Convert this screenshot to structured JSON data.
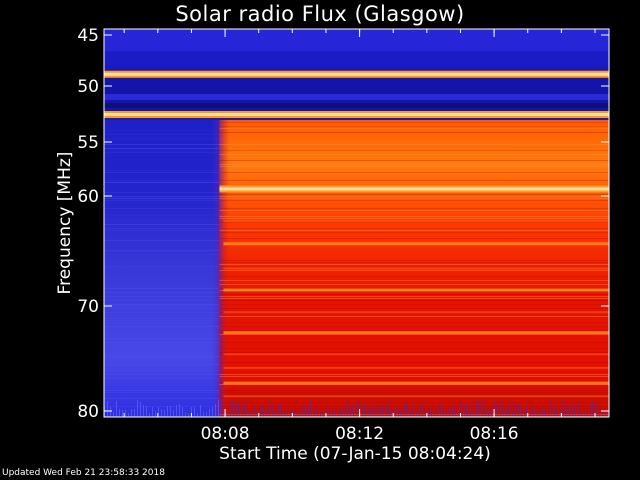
{
  "chart_data": {
    "type": "heatmap",
    "title": "Solar radio Flux (Glasgow)",
    "xlabel": "Start Time (07-Jan-15 08:04:24)",
    "ylabel": "Frequency [MHz]",
    "x_ticks": [
      "08:08",
      "08:12",
      "08:16"
    ],
    "y_ticks": [
      45,
      50,
      55,
      60,
      70,
      80
    ],
    "ylim": [
      45,
      80
    ],
    "xlim": [
      "08:04:24",
      "08:19:25"
    ],
    "colormap": [
      "#10106e",
      "#2a2ad0",
      "#5050f0",
      "#c01010",
      "#ff2a00",
      "#ff7a10",
      "#ffd070"
    ],
    "features": {
      "event_onset": "08:07:50",
      "bright_bands_mhz": [
        48.8,
        52.5,
        59.3
      ],
      "emission_lines_mhz": [
        64.3,
        68.5,
        72.5,
        77.3
      ]
    }
  },
  "footer": "Updated Wed Feb 21 23:58:33 2018"
}
